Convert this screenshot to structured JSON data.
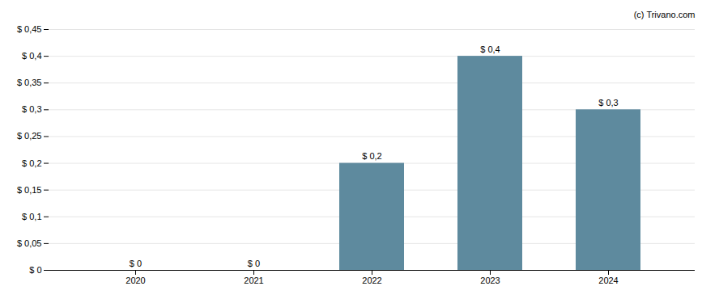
{
  "chart_data": {
    "type": "bar",
    "categories": [
      "2020",
      "2021",
      "2022",
      "2023",
      "2024"
    ],
    "values": [
      0.0,
      0.0,
      0.2,
      0.4,
      0.3
    ],
    "value_labels": [
      "$ 0",
      "$ 0",
      "$ 0,2",
      "$ 0,4",
      "$ 0,3"
    ],
    "data_labels": true,
    "color": "#5e8a9e",
    "ylim": [
      0,
      0.45
    ],
    "yticks": [
      {
        "value": 0.0,
        "label": "$ 0"
      },
      {
        "value": 0.05,
        "label": "$ 0,05"
      },
      {
        "value": 0.1,
        "label": "$ 0,1"
      },
      {
        "value": 0.15,
        "label": "$ 0,15"
      },
      {
        "value": 0.2,
        "label": "$ 0,2"
      },
      {
        "value": 0.25,
        "label": "$ 0,25"
      },
      {
        "value": 0.3,
        "label": "$ 0,3"
      },
      {
        "value": 0.35,
        "label": "$ 0,35"
      },
      {
        "value": 0.4,
        "label": "$ 0,4"
      },
      {
        "value": 0.45,
        "label": "$ 0,45"
      }
    ],
    "grid": true,
    "annotations": [
      "(c) Trivano.com"
    ]
  }
}
